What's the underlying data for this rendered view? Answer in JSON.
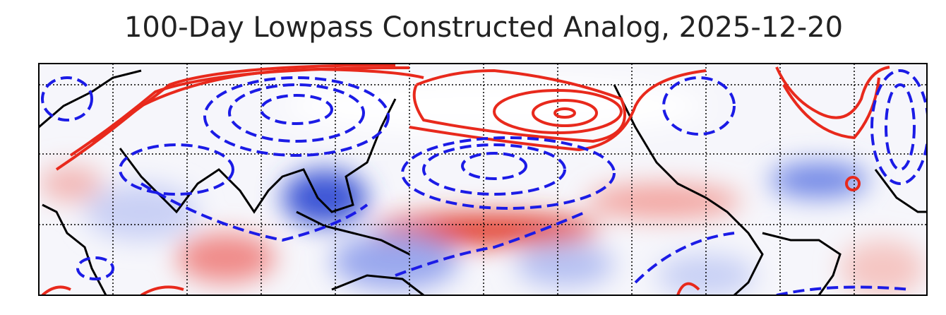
{
  "title": "100-Day Lowpass Constructed Analog, 2025-12-20"
}
